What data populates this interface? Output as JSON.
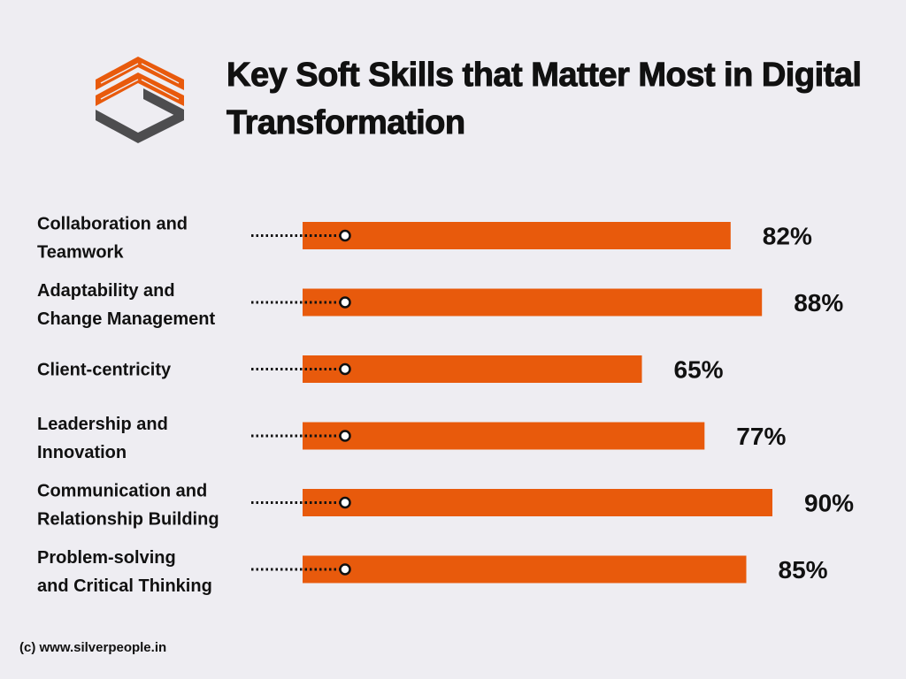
{
  "header": {
    "title": "Key Soft Skills that Matter Most in Digital Transformation"
  },
  "footer": {
    "credit": "(c) www.silverpeople.in"
  },
  "colors": {
    "accent": "#e85a0c",
    "logo_dark": "#4d4d4f",
    "text": "#111111",
    "background": "#eeedf2"
  },
  "chart_data": {
    "type": "bar",
    "orientation": "horizontal",
    "categories": [
      [
        "Collaboration and",
        "Teamwork"
      ],
      [
        "Adaptability and",
        "Change Management"
      ],
      [
        "Client-centricity"
      ],
      [
        "Leadership and",
        "Innovation"
      ],
      [
        "Communication and",
        "Relationship Building"
      ],
      [
        "Problem-solving",
        "and Critical Thinking"
      ]
    ],
    "values": [
      82,
      88,
      65,
      77,
      90,
      85
    ],
    "value_labels": [
      "82%",
      "88%",
      "65%",
      "77%",
      "90%",
      "85%"
    ],
    "xlim": [
      0,
      100
    ],
    "grid": false,
    "legend": "none"
  }
}
